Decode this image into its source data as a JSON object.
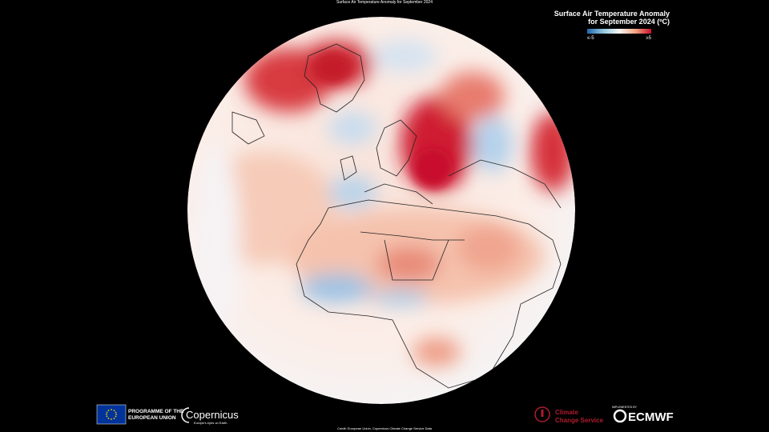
{
  "header": {
    "title": "Surface Air Temperature Anomaly for September 2024"
  },
  "legend": {
    "title_lines": [
      "Surface Air Temperature Anomaly",
      "for September 2024 (ºC)"
    ],
    "min_label": "≤-5",
    "max_label": "≥5"
  },
  "footer": {
    "eu_lines": [
      "PROGRAMME OF THE",
      "EUROPEAN UNION"
    ],
    "copernicus": "Copernicus",
    "copernicus_tagline": "Europe's eyes on Earth",
    "c3s_lines": [
      "Climate",
      "Change Service"
    ],
    "implemented_by": "IMPLEMENTED BY",
    "ecmwf": "ECMWF",
    "credit": "Credit: European Union, Copernicus Climate Change Service Data"
  }
}
